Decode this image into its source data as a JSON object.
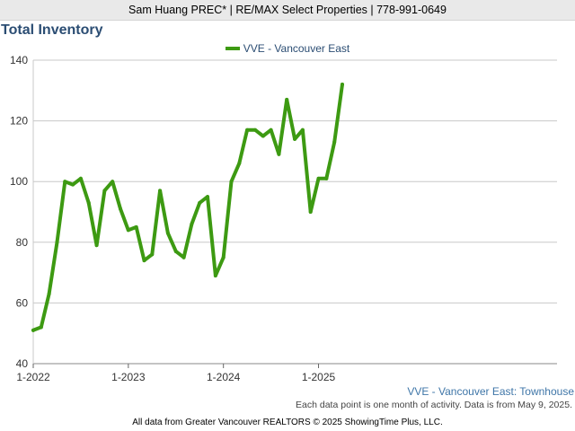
{
  "header": {
    "text": "Sam Huang PREC* | RE/MAX Select Properties | 778-991-0649"
  },
  "chart_data": {
    "type": "line",
    "title": "Total Inventory",
    "xlabel": "",
    "ylabel": "",
    "ylim": [
      40,
      140
    ],
    "yticks": [
      40,
      60,
      80,
      100,
      120,
      140
    ],
    "x_tick_labels": [
      "1-2022",
      "1-2023",
      "1-2024",
      "1-2025"
    ],
    "x_tick_month_index": [
      0,
      12,
      24,
      36
    ],
    "x": [
      "1-2022",
      "2-2022",
      "3-2022",
      "4-2022",
      "5-2022",
      "6-2022",
      "7-2022",
      "8-2022",
      "9-2022",
      "10-2022",
      "11-2022",
      "12-2022",
      "1-2023",
      "2-2023",
      "3-2023",
      "4-2023",
      "5-2023",
      "6-2023",
      "7-2023",
      "8-2023",
      "9-2023",
      "10-2023",
      "11-2023",
      "12-2023",
      "1-2024",
      "2-2024",
      "3-2024",
      "4-2024",
      "5-2024",
      "6-2024",
      "7-2024",
      "8-2024",
      "9-2024",
      "10-2024",
      "11-2024",
      "12-2024",
      "1-2025",
      "2-2025",
      "3-2025",
      "4-2025"
    ],
    "series": [
      {
        "name": "VVE - Vancouver East",
        "color": "#3d9a12",
        "values": [
          51,
          52,
          63,
          80,
          100,
          99,
          101,
          93,
          79,
          97,
          100,
          91,
          84,
          85,
          74,
          76,
          97,
          83,
          77,
          75,
          86,
          93,
          95,
          69,
          75,
          100,
          106,
          117,
          117,
          115,
          117,
          109,
          127,
          114,
          117,
          90,
          101,
          101,
          113,
          132
        ]
      }
    ],
    "grid": true,
    "legend_position": "top-center"
  },
  "footer": {
    "series_label": "VVE - Vancouver East: Townhouse",
    "data_note": "Each data point is one month of activity. Data is from May 9, 2025.",
    "source": "All data from Greater Vancouver REALTORS © 2025 ShowingTime Plus, LLC."
  }
}
